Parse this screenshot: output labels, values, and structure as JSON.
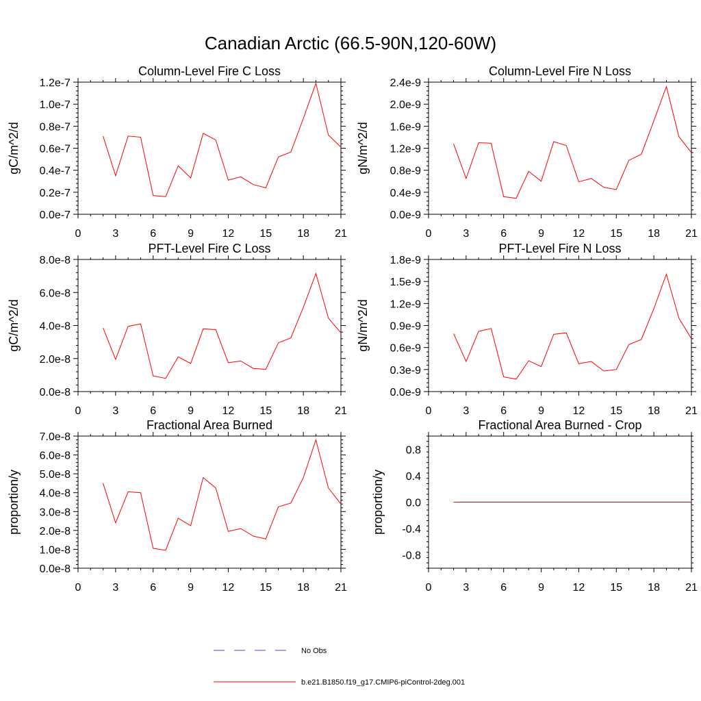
{
  "figure": {
    "title": "Canadian Arctic (66.5-90N,120-60W)"
  },
  "legend": {
    "items": [
      {
        "label": "No Obs",
        "color": "#4a4ad8",
        "style": "dashed"
      },
      {
        "label": "b.e21.B1850.f19_g17.CMIP6-piControl-2deg.001",
        "color": "#ff0000",
        "style": "solid"
      }
    ]
  },
  "chart_data": [
    {
      "type": "line",
      "title": "Column-Level Fire C Loss",
      "ylabel": "gC/m^2/d",
      "xlabel": "",
      "xlim": [
        0,
        21
      ],
      "ylim": [
        0,
        1.2e-07
      ],
      "xticks": [
        0,
        3,
        6,
        9,
        12,
        15,
        18,
        21
      ],
      "xtick_labels": [
        "0",
        "3",
        "6",
        "9",
        "12",
        "15",
        "18",
        "21"
      ],
      "yticks": [
        0,
        2e-08,
        4e-08,
        6e-08,
        8e-08,
        1e-07,
        1.2e-07
      ],
      "ytick_labels": [
        "0.0e-7",
        "0.2e-7",
        "0.4e-7",
        "0.6e-7",
        "0.8e-7",
        "1.0e-7",
        "1.2e-7"
      ],
      "series": [
        {
          "name": "b.e21.B1850.f19_g17.CMIP6-piControl-2deg.001",
          "color": "#ff0000",
          "x": [
            2,
            3,
            4,
            5,
            6,
            7,
            8,
            9,
            10,
            11,
            12,
            13,
            14,
            15,
            16,
            17,
            18,
            19,
            20,
            21
          ],
          "values": [
            7.1e-08,
            3.5e-08,
            7.1e-08,
            7e-08,
            1.7e-08,
            1.6e-08,
            4.4e-08,
            3.3e-08,
            7.35e-08,
            6.75e-08,
            3.1e-08,
            3.4e-08,
            2.7e-08,
            2.4e-08,
            5.2e-08,
            5.65e-08,
            8.7e-08,
            1.19e-07,
            7.2e-08,
            6.1e-08
          ]
        }
      ]
    },
    {
      "type": "line",
      "title": "Column-Level Fire N Loss",
      "ylabel": "gN/m^2/d",
      "xlabel": "",
      "xlim": [
        0,
        21
      ],
      "ylim": [
        0,
        2.4e-09
      ],
      "xticks": [
        0,
        3,
        6,
        9,
        12,
        15,
        18,
        21
      ],
      "xtick_labels": [
        "0",
        "3",
        "6",
        "9",
        "12",
        "15",
        "18",
        "21"
      ],
      "yticks": [
        0,
        4e-10,
        8e-10,
        1.2e-09,
        1.6e-09,
        2e-09,
        2.4e-09
      ],
      "ytick_labels": [
        "0.0e-9",
        "0.4e-9",
        "0.8e-9",
        "1.2e-9",
        "1.6e-9",
        "2.0e-9",
        "2.4e-9"
      ],
      "series": [
        {
          "name": "b.e21.B1850.f19_g17.CMIP6-piControl-2deg.001",
          "color": "#ff0000",
          "x": [
            2,
            3,
            4,
            5,
            6,
            7,
            8,
            9,
            10,
            11,
            12,
            13,
            14,
            15,
            16,
            17,
            18,
            19,
            20,
            21
          ],
          "values": [
            1.28e-09,
            6.5e-10,
            1.3e-09,
            1.29e-09,
            3.2e-10,
            2.9e-10,
            7.8e-10,
            6e-10,
            1.32e-09,
            1.25e-09,
            5.9e-10,
            6.5e-10,
            4.9e-10,
            4.5e-10,
            9.8e-10,
            1.09e-09,
            1.7e-09,
            2.32e-09,
            1.41e-09,
            1.12e-09
          ]
        }
      ]
    },
    {
      "type": "line",
      "title": "PFT-Level Fire C Loss",
      "ylabel": "gC/m^2/d",
      "xlabel": "",
      "xlim": [
        0,
        21
      ],
      "ylim": [
        0,
        8e-08
      ],
      "xticks": [
        0,
        3,
        6,
        9,
        12,
        15,
        18,
        21
      ],
      "xtick_labels": [
        "0",
        "3",
        "6",
        "9",
        "12",
        "15",
        "18",
        "21"
      ],
      "yticks": [
        0,
        2e-08,
        4e-08,
        6e-08,
        8e-08
      ],
      "ytick_labels": [
        "0.0e-8",
        "2.0e-8",
        "4.0e-8",
        "6.0e-8",
        "8.0e-8"
      ],
      "series": [
        {
          "name": "b.e21.B1850.f19_g17.CMIP6-piControl-2deg.001",
          "color": "#ff0000",
          "x": [
            2,
            3,
            4,
            5,
            6,
            7,
            8,
            9,
            10,
            11,
            12,
            13,
            14,
            15,
            16,
            17,
            18,
            19,
            20,
            21
          ],
          "values": [
            3.85e-08,
            1.95e-08,
            3.95e-08,
            4.1e-08,
            9.5e-09,
            8e-09,
            2.1e-08,
            1.7e-08,
            3.8e-08,
            3.75e-08,
            1.75e-08,
            1.85e-08,
            1.4e-08,
            1.35e-08,
            2.95e-08,
            3.25e-08,
            5.1e-08,
            7.15e-08,
            4.45e-08,
            3.55e-08
          ]
        }
      ]
    },
    {
      "type": "line",
      "title": "PFT-Level Fire N Loss",
      "ylabel": "gN/m^2/d",
      "xlabel": "",
      "xlim": [
        0,
        21
      ],
      "ylim": [
        0,
        1.8e-09
      ],
      "xticks": [
        0,
        3,
        6,
        9,
        12,
        15,
        18,
        21
      ],
      "xtick_labels": [
        "0",
        "3",
        "6",
        "9",
        "12",
        "15",
        "18",
        "21"
      ],
      "yticks": [
        0,
        3e-10,
        6e-10,
        9e-10,
        1.2e-09,
        1.5e-09,
        1.8e-09
      ],
      "ytick_labels": [
        "0.0e-9",
        "0.3e-9",
        "0.6e-9",
        "0.9e-9",
        "1.2e-9",
        "1.5e-9",
        "1.8e-9"
      ],
      "series": [
        {
          "name": "b.e21.B1850.f19_g17.CMIP6-piControl-2deg.001",
          "color": "#ff0000",
          "x": [
            2,
            3,
            4,
            5,
            6,
            7,
            8,
            9,
            10,
            11,
            12,
            13,
            14,
            15,
            16,
            17,
            18,
            19,
            20,
            21
          ],
          "values": [
            7.9e-10,
            4.1e-10,
            8.2e-10,
            8.6e-10,
            2e-10,
            1.7e-10,
            4.2e-10,
            3.4e-10,
            7.8e-10,
            8e-10,
            3.8e-10,
            4.1e-10,
            2.8e-10,
            3e-10,
            6.4e-10,
            7.1e-10,
            1.13e-09,
            1.6e-09,
            1e-09,
            7.2e-10
          ]
        }
      ]
    },
    {
      "type": "line",
      "title": "Fractional Area Burned",
      "ylabel": "proportion/y",
      "xlabel": "",
      "xlim": [
        0,
        21
      ],
      "ylim": [
        0,
        7e-08
      ],
      "xticks": [
        0,
        3,
        6,
        9,
        12,
        15,
        18,
        21
      ],
      "xtick_labels": [
        "0",
        "3",
        "6",
        "9",
        "12",
        "15",
        "18",
        "21"
      ],
      "yticks": [
        0,
        1e-08,
        2e-08,
        3e-08,
        4e-08,
        5e-08,
        6e-08,
        7e-08
      ],
      "ytick_labels": [
        "0.0e-8",
        "1.0e-8",
        "2.0e-8",
        "3.0e-8",
        "4.0e-8",
        "5.0e-8",
        "6.0e-8",
        "7.0e-8"
      ],
      "series": [
        {
          "name": "b.e21.B1850.f19_g17.CMIP6-piControl-2deg.001",
          "color": "#ff0000",
          "x": [
            2,
            3,
            4,
            5,
            6,
            7,
            8,
            9,
            10,
            11,
            12,
            13,
            14,
            15,
            16,
            17,
            18,
            19,
            20,
            21
          ],
          "values": [
            4.5e-08,
            2.4e-08,
            4.05e-08,
            4e-08,
            1.05e-08,
            9.5e-09,
            2.65e-08,
            2.25e-08,
            4.8e-08,
            4.25e-08,
            1.95e-08,
            2.1e-08,
            1.7e-08,
            1.55e-08,
            3.25e-08,
            3.45e-08,
            4.8e-08,
            6.8e-08,
            4.25e-08,
            3.4e-08
          ]
        }
      ]
    },
    {
      "type": "line",
      "title": "Fractional Area Burned - Crop",
      "ylabel": "proportion/y",
      "xlabel": "",
      "xlim": [
        0,
        21
      ],
      "ylim": [
        -1.0,
        1.0
      ],
      "xticks": [
        0,
        3,
        6,
        9,
        12,
        15,
        18,
        21
      ],
      "xtick_labels": [
        "0",
        "3",
        "6",
        "9",
        "12",
        "15",
        "18",
        "21"
      ],
      "yticks": [
        -0.8,
        -0.4,
        0,
        0.4,
        0.8
      ],
      "ytick_labels": [
        "-0.8",
        "-0.4",
        "0.0",
        "0.4",
        "0.8"
      ],
      "series": [
        {
          "name": "b.e21.B1850.f19_g17.CMIP6-piControl-2deg.001",
          "color": "#ff0000",
          "x": [
            2,
            3,
            4,
            5,
            6,
            7,
            8,
            9,
            10,
            11,
            12,
            13,
            14,
            15,
            16,
            17,
            18,
            19,
            20,
            21
          ],
          "values": [
            0,
            0,
            0,
            0,
            0,
            0,
            0,
            0,
            0,
            0,
            0,
            0,
            0,
            0,
            0,
            0,
            0,
            0,
            0,
            0
          ]
        }
      ]
    }
  ]
}
